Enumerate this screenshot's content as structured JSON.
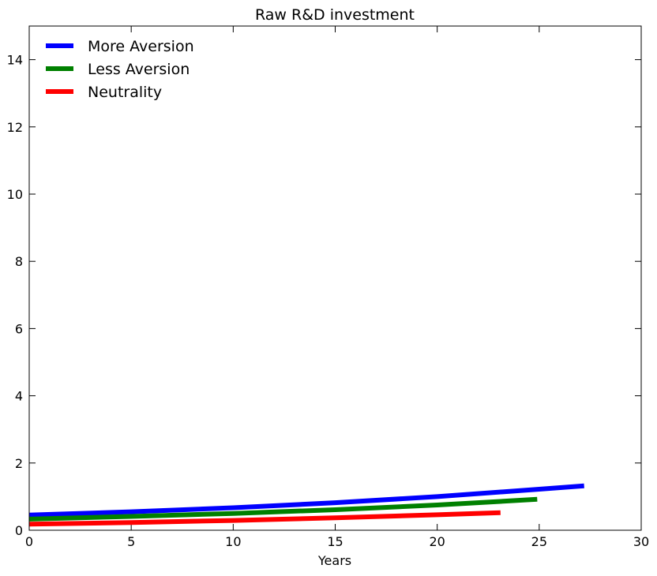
{
  "chart_data": {
    "type": "line",
    "title": "Raw R&D investment",
    "xlabel": "Years",
    "ylabel": "",
    "xlim": [
      0,
      30
    ],
    "ylim": [
      0,
      15
    ],
    "xticks": [
      "0",
      "5",
      "10",
      "15",
      "20",
      "25",
      "30"
    ],
    "yticks": [
      "0",
      "2",
      "4",
      "6",
      "8",
      "10",
      "12",
      "14"
    ],
    "grid": false,
    "legend_position": "top-left",
    "series": [
      {
        "name": "More Aversion",
        "color": "#0000ff",
        "x": [
          0,
          5,
          10,
          15,
          20,
          25,
          27.2
        ],
        "y": [
          0.45,
          0.55,
          0.67,
          0.82,
          1.0,
          1.22,
          1.32
        ]
      },
      {
        "name": "Less Aversion",
        "color": "#008000",
        "x": [
          0,
          5,
          10,
          15,
          20,
          24.9
        ],
        "y": [
          0.33,
          0.41,
          0.5,
          0.61,
          0.75,
          0.92
        ]
      },
      {
        "name": "Neutrality",
        "color": "#ff0000",
        "x": [
          0,
          5,
          10,
          15,
          20,
          23.1
        ],
        "y": [
          0.18,
          0.23,
          0.29,
          0.37,
          0.46,
          0.52
        ]
      }
    ]
  }
}
